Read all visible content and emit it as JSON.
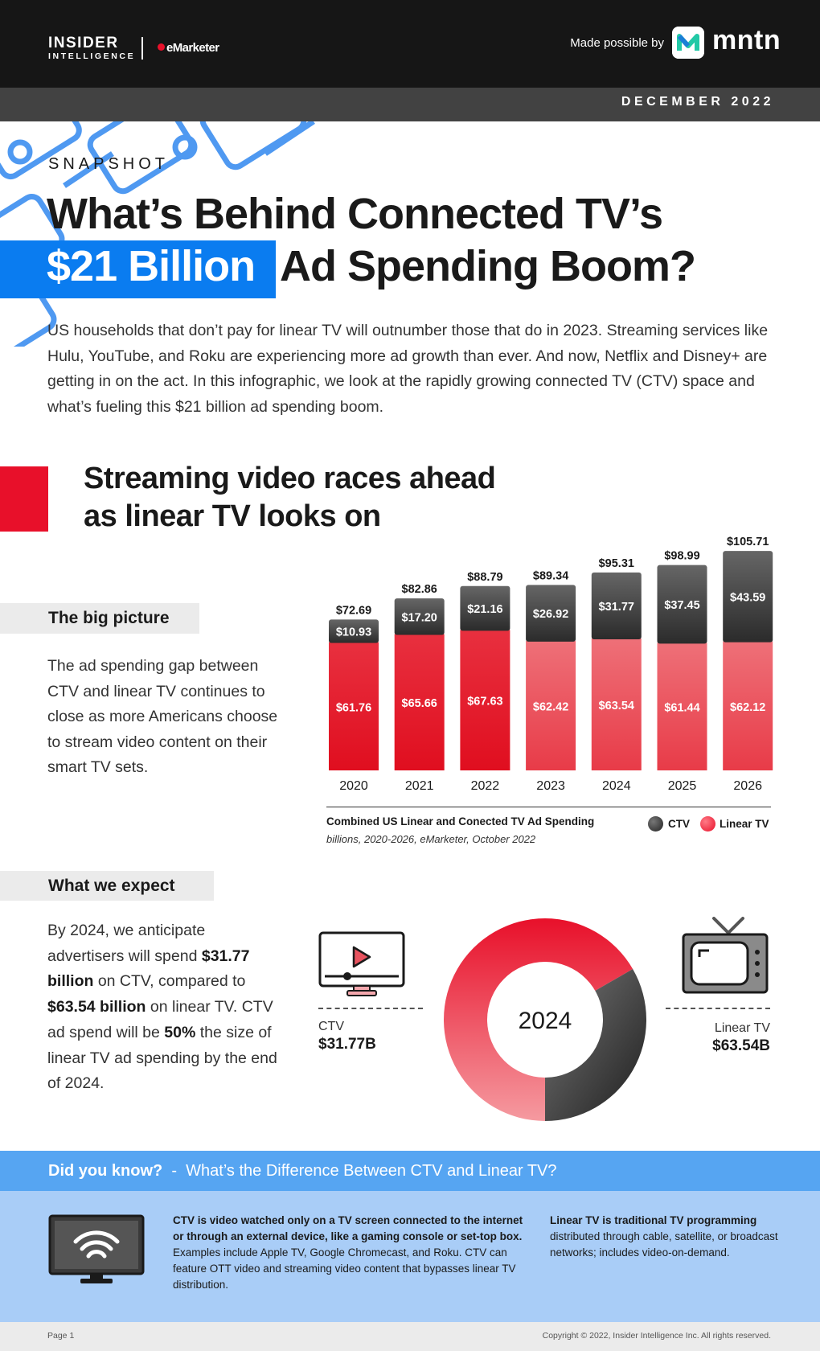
{
  "header": {
    "brand_line1": "INSIDER",
    "brand_line2": "INTELLIGENCE",
    "brand_partner": "eMarketer",
    "made_possible_by": "Made possible by",
    "sponsor": "mntn",
    "date": "DECEMBER 2022"
  },
  "hero": {
    "kicker": "SNAPSHOT",
    "title_line1": "What’s Behind Connected TV’s",
    "title_highlight": "$21 Billion",
    "title_line2_rest": "Ad Spending Boom?",
    "intro": "US households that don’t pay for linear TV will outnumber those that do in 2023. Streaming services like Hulu, YouTube, and Roku are experiencing more ad growth than ever. And now, Netflix and Disney+ are getting in on the act. In this infographic, we look at the rapidly growing connected TV (CTV) space and what’s fueling this $21 billion ad spending boom."
  },
  "section": {
    "title_line1": "Streaming video races ahead",
    "title_line2": "as linear TV looks on",
    "big_picture_label": "The big picture",
    "big_picture_body": "The ad spending gap between CTV and linear TV continues to close as more Americans choose to stream video content on their smart TV sets.",
    "expect_label": "What we expect",
    "expect_body": {
      "p1": "By 2024, we anticipate advertisers will spend ",
      "b1": "$31.77 billion",
      "p2": " on CTV, compared to ",
      "b2": "$63.54 billion",
      "p3": " on linear TV. CTV ad spend will be ",
      "b3": "50%",
      "p4": " the size of linear TV ad spending by the end of 2024."
    }
  },
  "chart_data": [
    {
      "type": "bar",
      "stacked": true,
      "title": "Combined US Linear and Conected TV Ad Spending",
      "subtitle": "billions, 2020-2026, eMarketer, October 2022",
      "categories": [
        "2020",
        "2021",
        "2022",
        "2023",
        "2024",
        "2025",
        "2026"
      ],
      "series": [
        {
          "name": "Linear TV",
          "values": [
            61.76,
            65.66,
            67.63,
            62.42,
            63.54,
            61.44,
            62.12
          ],
          "labels": [
            "$61.76",
            "$65.66",
            "$67.63",
            "$62.42",
            "$63.54",
            "$61.44",
            "$62.12"
          ],
          "color": "#e8102a"
        },
        {
          "name": "CTV",
          "values": [
            10.93,
            17.2,
            21.16,
            26.92,
            31.77,
            37.45,
            43.59
          ],
          "labels": [
            "$10.93",
            "$17.20",
            "$21.16",
            "$26.92",
            "$31.77",
            "$37.45",
            "$43.59"
          ],
          "color": "#333333"
        }
      ],
      "totals": [
        72.69,
        82.86,
        88.79,
        89.34,
        95.31,
        98.99,
        105.71
      ],
      "total_labels": [
        "$72.69",
        "$82.86",
        "$88.79",
        "$89.34",
        "$95.31",
        "$98.99",
        "$105.71"
      ],
      "ylim": [
        0,
        110
      ],
      "grid": false,
      "legend": "bottom-right"
    },
    {
      "type": "pie",
      "center_label": "2024",
      "slices": [
        {
          "name": "CTV",
          "value": 31.77,
          "label": "$31.77B",
          "color": "#3a3a3a"
        },
        {
          "name": "Linear TV",
          "value": 63.54,
          "label": "$63.54B",
          "color": "#e8102a"
        }
      ]
    }
  ],
  "donut": {
    "ctv_label": "CTV",
    "ctv_value": "$31.77B",
    "linear_label": "Linear TV",
    "linear_value": "$63.54B"
  },
  "did_you_know": {
    "heading": "Did you know?",
    "separator": "-",
    "question": "What’s the Difference Between CTV and Linear TV?",
    "ctv_bold": "CTV is video watched only on a TV screen connected to the internet or through an external device, like a gaming console or set-top box.",
    "ctv_rest": " Examples include Apple TV, Google Chromecast, and Roku. CTV can feature OTT video and streaming video content that bypasses linear TV distribution.",
    "linear_bold": "Linear TV is traditional TV programming",
    "linear_rest": " distributed through cable, satellite, or broadcast networks; includes video-on-demand."
  },
  "footer": {
    "page": "Page 1",
    "copyright": "Copyright © 2022, Insider Intelligence Inc. All rights reserved."
  },
  "colors": {
    "brand_blue": "#0a7cf0",
    "accent_red": "#e8102a",
    "dark": "#161616",
    "dyk_bar": "#56a5f2",
    "dyk_panel": "#a9cdf7"
  }
}
